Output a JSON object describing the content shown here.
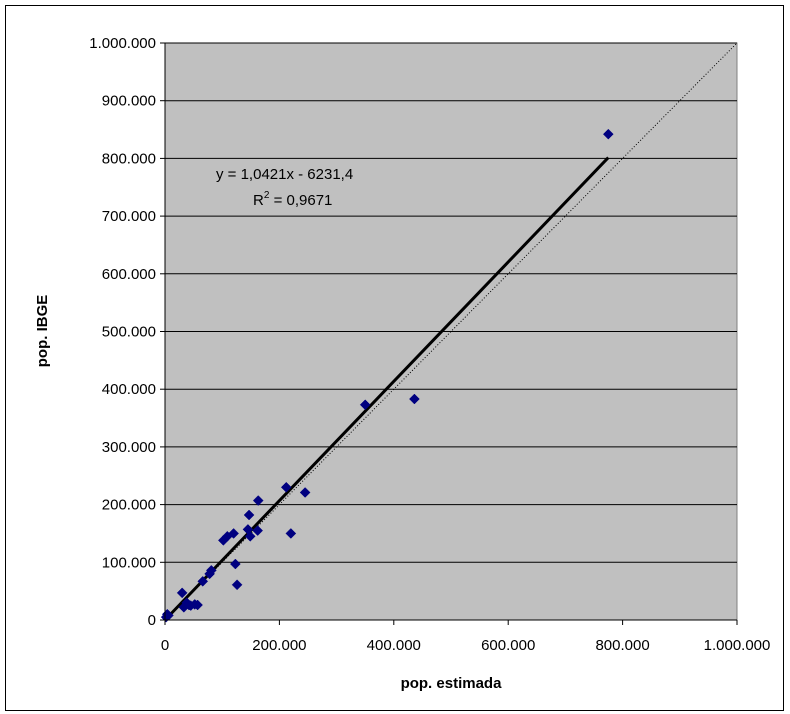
{
  "chart_data": {
    "type": "scatter",
    "xlabel": "pop. estimada",
    "ylabel": "pop. IBGE",
    "xlim": [
      0,
      1000000
    ],
    "ylim": [
      0,
      1000000
    ],
    "x_ticks": [
      "0",
      "200.000",
      "400.000",
      "600.000",
      "800.000",
      "1.000.000"
    ],
    "y_ticks": [
      "0",
      "100.000",
      "200.000",
      "300.000",
      "400.000",
      "500.000",
      "600.000",
      "700.000",
      "800.000",
      "900.000",
      "1.000.000"
    ],
    "grid": "horizontal",
    "plot_background": "#c0c0c0",
    "marker_color": "#000080",
    "points": [
      [
        2000,
        5000
      ],
      [
        4000,
        10000
      ],
      [
        6000,
        8000
      ],
      [
        30000,
        47000
      ],
      [
        33000,
        22000
      ],
      [
        38000,
        30000
      ],
      [
        42000,
        26000
      ],
      [
        45000,
        25000
      ],
      [
        52000,
        27000
      ],
      [
        57000,
        26000
      ],
      [
        66000,
        67000
      ],
      [
        78000,
        80000
      ],
      [
        81000,
        86000
      ],
      [
        102000,
        138000
      ],
      [
        109000,
        145000
      ],
      [
        120000,
        150000
      ],
      [
        123000,
        97000
      ],
      [
        126000,
        61000
      ],
      [
        145000,
        157000
      ],
      [
        147000,
        182000
      ],
      [
        149000,
        145000
      ],
      [
        162000,
        155000
      ],
      [
        163000,
        207000
      ],
      [
        212000,
        230000
      ],
      [
        220000,
        150000
      ],
      [
        245000,
        221000
      ],
      [
        350000,
        373000
      ],
      [
        436000,
        383000
      ],
      [
        775000,
        842000
      ]
    ],
    "trendline": {
      "slope": 1.0421,
      "intercept": -6231.4,
      "x_range": [
        0,
        775000
      ]
    },
    "reference_line": {
      "label": "",
      "from": [
        0,
        0
      ],
      "to": [
        1000000,
        1000000
      ]
    },
    "annotations": {
      "equation": "y = 1,0421x - 6231,4",
      "r2_prefix": "R",
      "r2_sup": "2",
      "r2_suffix": " = 0,9671"
    }
  }
}
